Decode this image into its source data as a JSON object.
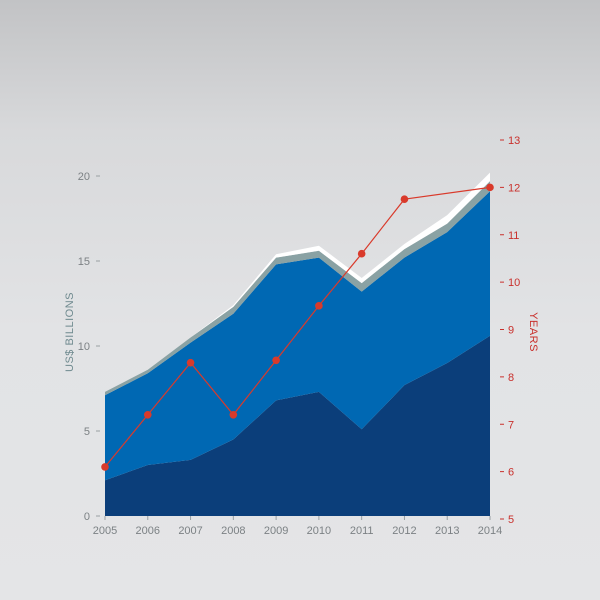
{
  "chart_data": {
    "type": "area",
    "ylabel": "US$ BILLIONS",
    "y2label": "YEARS",
    "x": [
      "2005",
      "2006",
      "2007",
      "2008",
      "2009",
      "2010",
      "2011",
      "2012",
      "2013",
      "2014"
    ],
    "ylim": [
      0,
      20
    ],
    "yticks": [
      0,
      5,
      10,
      15,
      20
    ],
    "y2lim": [
      5,
      13
    ],
    "y2ticks": [
      5,
      6,
      7,
      8,
      9,
      10,
      11,
      12,
      13
    ],
    "series": [
      {
        "values": [
          2.1,
          3.0,
          3.3,
          4.5,
          6.8,
          7.3,
          5.1,
          7.7,
          9.0,
          10.6
        ],
        "color": "#0b3e7a"
      },
      {
        "values": [
          5.0,
          5.4,
          6.9,
          7.4,
          8.0,
          7.9,
          8.1,
          7.5,
          7.7,
          8.5
        ],
        "color": "#0068b3"
      },
      {
        "values": [
          0.2,
          0.2,
          0.3,
          0.4,
          0.4,
          0.4,
          0.5,
          0.5,
          0.5,
          0.6
        ],
        "color": "#8aa2a4"
      },
      {
        "values": [
          0.0,
          0.0,
          0.0,
          0.1,
          0.2,
          0.3,
          0.3,
          0.3,
          0.5,
          0.5
        ],
        "color": "#ffffff"
      }
    ],
    "line_series": {
      "axis": "right",
      "color": "#d93a2b",
      "values": [
        6.1,
        7.2,
        8.3,
        7.2,
        8.35,
        9.5,
        10.6,
        11.75,
        null,
        12.0
      ]
    },
    "grid": false,
    "legend": "none"
  }
}
